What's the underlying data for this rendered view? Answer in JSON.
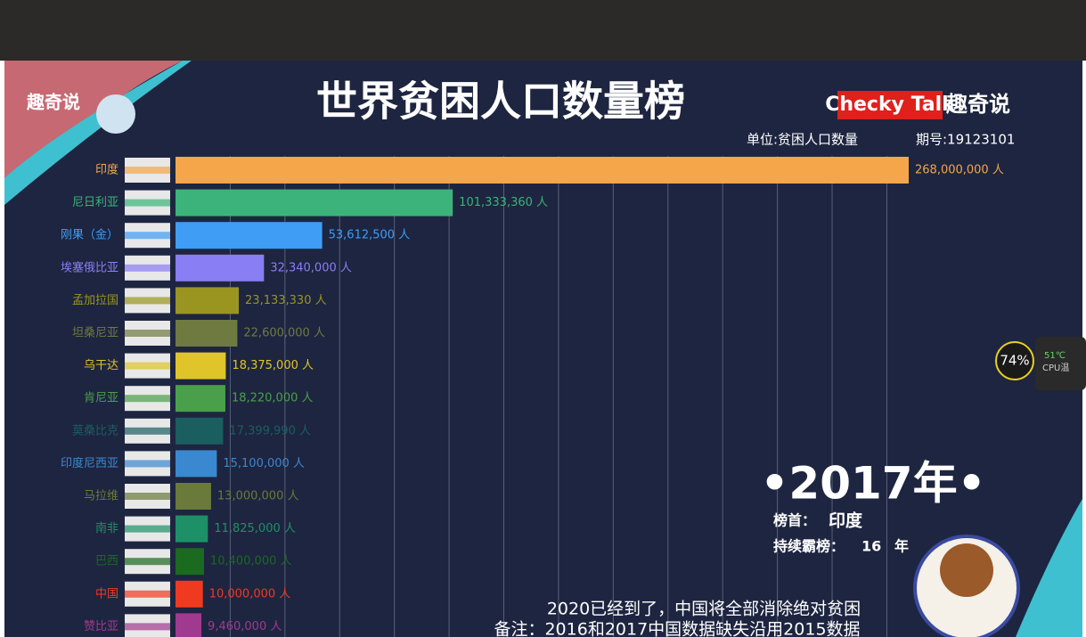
{
  "chart_data": {
    "type": "bar",
    "orientation": "horizontal",
    "title": "世界贫困人口数量榜",
    "subtitle": "单位:贫困人口数量",
    "categories": [
      "印度",
      "尼日利亚",
      "刚果（金）",
      "埃塞俄比亚",
      "孟加拉国",
      "坦桑尼亚",
      "乌干达",
      "肯尼亚",
      "莫桑比克",
      "印度尼西亚",
      "马拉维",
      "南非",
      "巴西",
      "中国",
      "赞比亚"
    ],
    "values": [
      268000000,
      101333360,
      53612500,
      32340000,
      23133330,
      22600000,
      18375000,
      18220000,
      17399990,
      15100000,
      13000000,
      11825000,
      10400000,
      10000000,
      9460000
    ],
    "value_labels": [
      "268,000,000 人",
      "101,333,360 人",
      "53,612,500 人",
      "32,340,000 人",
      "23,133,330 人",
      "22,600,000 人",
      "18,375,000 人",
      "18,220,000 人",
      "17,399,990 人",
      "15,100,000 人",
      "13,000,000 人",
      "11,825,000 人",
      "10,400,000 人",
      "10,000,000 人",
      "9,460,000 人"
    ],
    "colors": [
      "#f5a64a",
      "#3cb37a",
      "#3f9df5",
      "#8a7ef5",
      "#9a9520",
      "#6e7a40",
      "#e0c52a",
      "#4aa04a",
      "#1a5e60",
      "#3a88d0",
      "#6a7a3a",
      "#1e9068",
      "#1a6a20",
      "#f03a20",
      "#a03a90"
    ],
    "xlim": [
      0,
      268000000
    ],
    "xticks": [
      20000000,
      40000000,
      60000000,
      80000000,
      100000000,
      120000000,
      140000000,
      160000000,
      180000000,
      200000000,
      220000000,
      240000000,
      260000000
    ],
    "grid": true
  },
  "header": {
    "issue": "期号:19123101",
    "logo_en": "Checky Talk",
    "logo_cn": "趣奇说",
    "brand_left": "趣奇说"
  },
  "year_panel": {
    "year": "•2017年•",
    "leader_label": "榜首：",
    "leader": "印度",
    "streak_label": "持续霸榜：",
    "streak": 16,
    "streak_unit": "年"
  },
  "captions": [
    "2020已经到了，中国将全部消除绝对贫困",
    "备注：2016和2017中国数据缺失沿用2015数据"
  ],
  "widget": {
    "load": "74%",
    "temp": "51℃",
    "label": "CPU温"
  }
}
